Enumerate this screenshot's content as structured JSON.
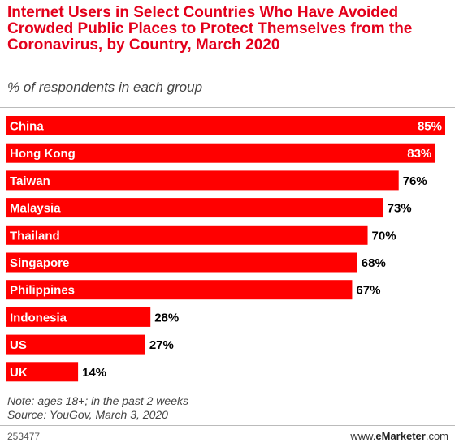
{
  "header": {
    "title": "Internet Users in Select Countries Who Have Avoided Crowded Public Places to Protect Themselves from the Coronavirus, by Country, March 2020",
    "subtitle": "% of respondents in each group"
  },
  "chart_data": {
    "type": "bar",
    "orientation": "horizontal",
    "categories": [
      "China",
      "Hong Kong",
      "Taiwan",
      "Malaysia",
      "Thailand",
      "Singapore",
      "Philippines",
      "Indonesia",
      "US",
      "UK"
    ],
    "values": [
      85,
      83,
      76,
      73,
      70,
      68,
      67,
      28,
      27,
      14
    ],
    "value_labels": [
      "85%",
      "83%",
      "76%",
      "73%",
      "70%",
      "68%",
      "67%",
      "28%",
      "27%",
      "14%"
    ],
    "title": "Internet Users in Select Countries Who Have Avoided Crowded Public Places to Protect Themselves from the Coronavirus, by Country, March 2020",
    "subtitle": "% of respondents in each group",
    "xlim": [
      0,
      85
    ],
    "grid": false,
    "bar_color": "#ff0000"
  },
  "notes": {
    "note": "Note: ages 18+; in the past 2 weeks",
    "source": "Source: YouGov, March 3, 2020"
  },
  "footer": {
    "chart_id": "253477",
    "brand_prefix": "www.",
    "brand_name": "eMarketer",
    "brand_suffix": ".com"
  }
}
